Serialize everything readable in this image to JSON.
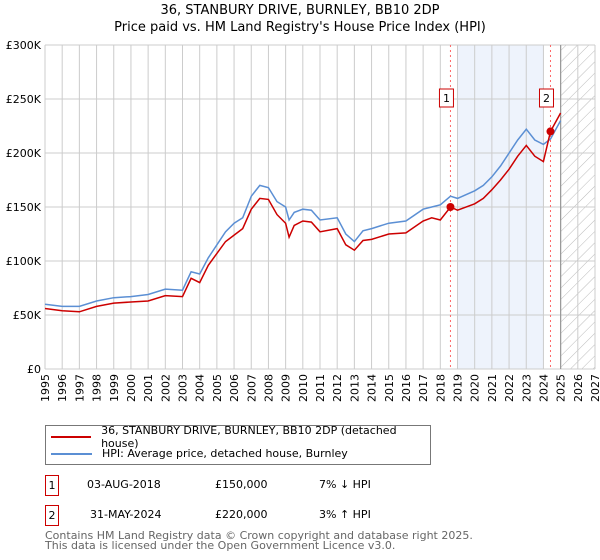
{
  "chart_data": {
    "type": "line",
    "title": "36, STANBURY DRIVE, BURNLEY, BB10 2DP",
    "subtitle": "Price paid vs. HM Land Registry's House Price Index (HPI)",
    "xlim": [
      1995,
      2027
    ],
    "ylim": [
      0,
      300000
    ],
    "y_ticks": [
      {
        "v": 0,
        "label": "£0"
      },
      {
        "v": 50000,
        "label": "£50K"
      },
      {
        "v": 100000,
        "label": "£100K"
      },
      {
        "v": 150000,
        "label": "£150K"
      },
      {
        "v": 200000,
        "label": "£200K"
      },
      {
        "v": 250000,
        "label": "£250K"
      },
      {
        "v": 300000,
        "label": "£300K"
      }
    ],
    "x_ticks": [
      "1995",
      "1996",
      "1997",
      "1998",
      "1999",
      "2000",
      "2001",
      "2002",
      "2003",
      "2004",
      "2005",
      "2006",
      "2007",
      "2008",
      "2009",
      "2010",
      "2011",
      "2012",
      "2013",
      "2014",
      "2015",
      "2016",
      "2017",
      "2018",
      "2019",
      "2020",
      "2021",
      "2022",
      "2023",
      "2024",
      "2025",
      "2026",
      "2027"
    ],
    "grid": true,
    "shaded_range": [
      2019.0,
      2024.0
    ],
    "forecast_hatch_from": 2025.0,
    "series": [
      {
        "name": "36, STANBURY DRIVE, BURNLEY, BB10 2DP (detached house)",
        "color": "#cc0000",
        "x": [
          1995,
          1996,
          1997,
          1998,
          1999,
          2000,
          2001,
          2002,
          2003,
          2003.5,
          2004,
          2004.5,
          2005,
          2005.5,
          2006,
          2006.5,
          2007,
          2007.5,
          2008,
          2008.5,
          2009,
          2009.2,
          2009.5,
          2010,
          2010.5,
          2011,
          2012,
          2012.5,
          2013,
          2013.5,
          2014,
          2015,
          2016,
          2017,
          2017.5,
          2018,
          2018.59,
          2019,
          2020,
          2020.5,
          2021,
          2021.5,
          2022,
          2022.5,
          2023,
          2023.5,
          2024,
          2024.41,
          2025
        ],
        "values": [
          56000,
          54000,
          53000,
          58000,
          61000,
          62000,
          63000,
          68000,
          67000,
          84000,
          80000,
          96000,
          107000,
          118000,
          124000,
          130000,
          148000,
          158000,
          157000,
          143000,
          135000,
          122000,
          133000,
          137000,
          136000,
          127000,
          130000,
          115000,
          110000,
          119000,
          120000,
          125000,
          126000,
          137000,
          140000,
          138000,
          150000,
          147000,
          153000,
          158000,
          166000,
          175000,
          185000,
          197000,
          207000,
          197000,
          192000,
          220000,
          237000
        ]
      },
      {
        "name": "HPI: Average price, detached house, Burnley",
        "color": "#5b8fd4",
        "x": [
          1995,
          1996,
          1997,
          1998,
          1999,
          2000,
          2001,
          2002,
          2003,
          2003.5,
          2004,
          2004.5,
          2005,
          2005.5,
          2006,
          2006.5,
          2007,
          2007.5,
          2008,
          2008.5,
          2009,
          2009.2,
          2009.5,
          2010,
          2010.5,
          2011,
          2012,
          2012.5,
          2013,
          2013.5,
          2014,
          2015,
          2016,
          2017,
          2017.5,
          2018,
          2018.59,
          2019,
          2020,
          2020.5,
          2021,
          2021.5,
          2022,
          2022.5,
          2023,
          2023.5,
          2024,
          2024.41,
          2025
        ],
        "values": [
          60000,
          58000,
          58000,
          63000,
          66000,
          67000,
          69000,
          74000,
          73000,
          90000,
          88000,
          103000,
          115000,
          127000,
          135000,
          140000,
          160000,
          170000,
          168000,
          155000,
          150000,
          138000,
          145000,
          148000,
          147000,
          138000,
          140000,
          125000,
          118000,
          128000,
          130000,
          135000,
          137000,
          148000,
          150000,
          152000,
          160000,
          158000,
          165000,
          170000,
          178000,
          188000,
          200000,
          212000,
          222000,
          212000,
          208000,
          213000,
          230000
        ]
      }
    ],
    "sales": [
      {
        "id": "1",
        "x": 2018.59,
        "value": 150000,
        "date": "03-AUG-2018",
        "price": "£150,000",
        "hpi": "7% ↓ HPI"
      },
      {
        "id": "2",
        "x": 2024.41,
        "value": 220000,
        "date": "31-MAY-2024",
        "price": "£220,000",
        "hpi": "3% ↑ HPI"
      }
    ]
  },
  "footer": {
    "line1": "Contains HM Land Registry data © Crown copyright and database right 2025.",
    "line2": "This data is licensed under the Open Government Licence v3.0."
  }
}
